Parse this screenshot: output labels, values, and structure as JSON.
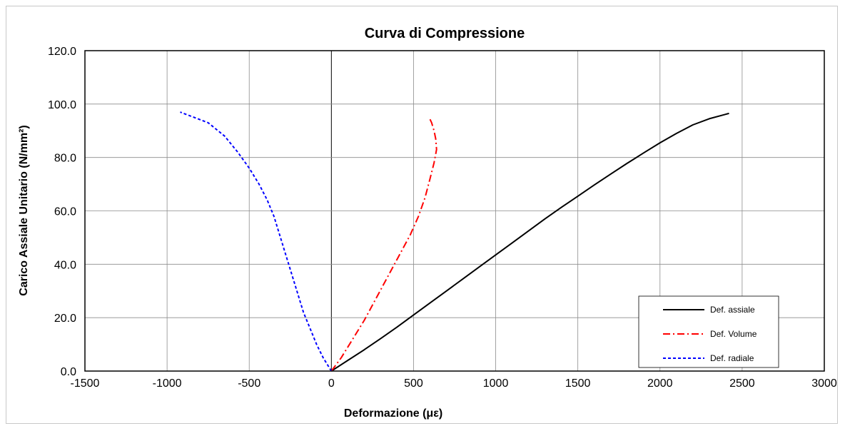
{
  "chart_data": {
    "type": "line",
    "title": "Curva di Compressione",
    "xlabel": "Deformazione (με)",
    "ylabel": "Carico Assiale Unitario (N/mm²)",
    "xlim": [
      -1500,
      3000
    ],
    "ylim": [
      0,
      120
    ],
    "x_ticks": [
      -1500,
      -1000,
      -500,
      0,
      500,
      1000,
      1500,
      2000,
      2500,
      3000
    ],
    "y_ticks": [
      0,
      20,
      40,
      60,
      80,
      100,
      120
    ],
    "x_tick_labels": [
      "-1500",
      "-1000",
      "-500",
      "0",
      "500",
      "1000",
      "1500",
      "2000",
      "2500",
      "3000"
    ],
    "y_tick_labels": [
      "0.0",
      "20.0",
      "40.0",
      "60.0",
      "80.0",
      "100.0",
      "120.0"
    ],
    "grid": true,
    "legend_position": "bottom-right",
    "series": [
      {
        "name": "Def. assiale",
        "color": "#000000",
        "dash": "solid",
        "points": [
          [
            0,
            0
          ],
          [
            100,
            4
          ],
          [
            200,
            8
          ],
          [
            300,
            12.2
          ],
          [
            400,
            16.5
          ],
          [
            500,
            21
          ],
          [
            600,
            25.5
          ],
          [
            700,
            30
          ],
          [
            800,
            34.5
          ],
          [
            900,
            39
          ],
          [
            1000,
            43.5
          ],
          [
            1100,
            48
          ],
          [
            1200,
            52.5
          ],
          [
            1300,
            57
          ],
          [
            1400,
            61.3
          ],
          [
            1500,
            65.5
          ],
          [
            1600,
            69.7
          ],
          [
            1700,
            73.8
          ],
          [
            1800,
            77.8
          ],
          [
            1900,
            81.7
          ],
          [
            2000,
            85.5
          ],
          [
            2100,
            89
          ],
          [
            2200,
            92.2
          ],
          [
            2300,
            94.5
          ],
          [
            2420,
            96.5
          ]
        ]
      },
      {
        "name": "Def. Volume",
        "color": "#ff0000",
        "dash": "dashdot",
        "points": [
          [
            0,
            0
          ],
          [
            60,
            5
          ],
          [
            130,
            12
          ],
          [
            200,
            19
          ],
          [
            270,
            27
          ],
          [
            340,
            35
          ],
          [
            410,
            43
          ],
          [
            480,
            51
          ],
          [
            530,
            58
          ],
          [
            570,
            65
          ],
          [
            600,
            72
          ],
          [
            625,
            78
          ],
          [
            640,
            83
          ],
          [
            635,
            87
          ],
          [
            625,
            90
          ],
          [
            610,
            93
          ],
          [
            595,
            95
          ]
        ]
      },
      {
        "name": "Def. radiale",
        "color": "#0000ff",
        "dash": "dashed",
        "points": [
          [
            0,
            0
          ],
          [
            -50,
            5
          ],
          [
            -90,
            10
          ],
          [
            -130,
            16
          ],
          [
            -170,
            22
          ],
          [
            -200,
            28
          ],
          [
            -230,
            34
          ],
          [
            -260,
            40
          ],
          [
            -290,
            46
          ],
          [
            -320,
            52
          ],
          [
            -350,
            58
          ],
          [
            -390,
            64
          ],
          [
            -440,
            70
          ],
          [
            -500,
            76
          ],
          [
            -570,
            82
          ],
          [
            -650,
            88
          ],
          [
            -750,
            93
          ],
          [
            -920,
            97
          ]
        ]
      }
    ]
  }
}
